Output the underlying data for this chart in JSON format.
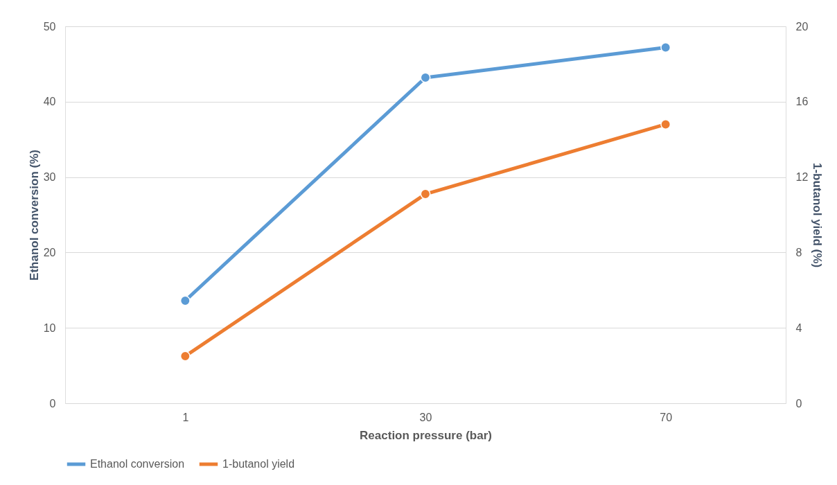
{
  "chart_data": {
    "type": "line",
    "xlabel": "Reaction pressure (bar)",
    "ylabel": "Ethanol conversion (%)",
    "y2label": "1-butanol yield (%)",
    "categories": [
      "1",
      "30",
      "70"
    ],
    "series": [
      {
        "name": "Ethanol conversion",
        "color": "#5b9bd5",
        "values": [
          13.6,
          43.2,
          47.2
        ]
      },
      {
        "name": "1-butanol yield",
        "color": "#ed7d31",
        "values": [
          2.5,
          11.1,
          14.8
        ],
        "axis": "y2"
      }
    ],
    "ylim": [
      0,
      50
    ],
    "yticks": [
      0,
      10,
      20,
      30,
      40,
      50
    ],
    "y2lim": [
      0,
      20
    ],
    "y2ticks": [
      0,
      4,
      8,
      12,
      16,
      20
    ],
    "grid": "y",
    "legend": "bottom",
    "marker": "circle"
  }
}
